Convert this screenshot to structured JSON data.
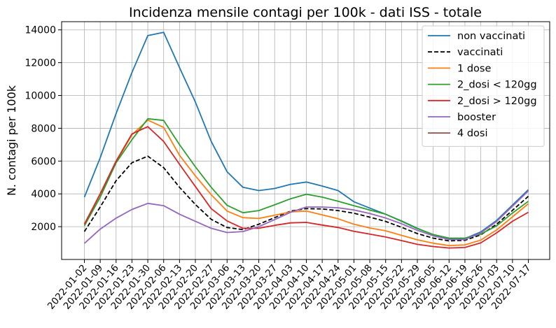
{
  "chart_data": {
    "type": "line",
    "title": "Incidenza mensile contagi per 100k - dati ISS - totale",
    "xlabel": "",
    "ylabel": "N. contagi per 100k",
    "ylim": [
      0,
      14500
    ],
    "yticks": [
      2000,
      4000,
      6000,
      8000,
      10000,
      12000,
      14000
    ],
    "grid": true,
    "legend_position": "top-right",
    "categories": [
      "2022-01-02",
      "2022-01-09",
      "2022-01-16",
      "2022-01-23",
      "2022-01-30",
      "2022-02-06",
      "2022-02-13",
      "2022-02-20",
      "2022-02-27",
      "2022-03-06",
      "2022-03-13",
      "2022-03-20",
      "2022-03-27",
      "2022-04-03",
      "2022-04-10",
      "2022-04-17",
      "2022-04-24",
      "2022-05-01",
      "2022-05-08",
      "2022-05-15",
      "2022-05-22",
      "2022-05-29",
      "2022-06-05",
      "2022-06-12",
      "2022-06-19",
      "2022-06-26",
      "2022-07-03",
      "2022-07-10",
      "2022-07-17"
    ],
    "series": [
      {
        "name": "non vaccinati",
        "color": "#1f77b4",
        "dash": "solid",
        "values": [
          3800,
          6200,
          8900,
          11400,
          13650,
          13850,
          11700,
          9600,
          7200,
          5350,
          4400,
          4200,
          4330,
          4580,
          4720,
          4480,
          4200,
          3520,
          3130,
          2760,
          2350,
          1900,
          1520,
          1270,
          1270,
          1680,
          2380,
          3320,
          4250
        ]
      },
      {
        "name": "vaccinati",
        "color": "#000000",
        "dash": "dashed",
        "values": [
          1700,
          3200,
          4800,
          5900,
          6300,
          5600,
          4400,
          3350,
          2450,
          1950,
          1820,
          2150,
          2550,
          2950,
          3100,
          3080,
          2980,
          2820,
          2580,
          2320,
          1960,
          1580,
          1300,
          1130,
          1170,
          1500,
          2150,
          3000,
          3850
        ]
      },
      {
        "name": "1 dose",
        "color": "#ff7f0e",
        "dash": "solid",
        "values": [
          2150,
          4000,
          5950,
          7600,
          8500,
          8050,
          6350,
          5100,
          3950,
          2950,
          2550,
          2500,
          2700,
          2900,
          2950,
          2720,
          2480,
          2150,
          1920,
          1750,
          1470,
          1200,
          990,
          850,
          890,
          1180,
          1800,
          2600,
          3400
        ]
      },
      {
        "name": "2_dosi < 120gg",
        "color": "#2ca02c",
        "dash": "solid",
        "values": [
          2050,
          3800,
          5900,
          7300,
          8580,
          8480,
          7000,
          5650,
          4400,
          3300,
          2850,
          2980,
          3330,
          3700,
          3980,
          3800,
          3550,
          3280,
          3010,
          2760,
          2330,
          1880,
          1520,
          1300,
          1300,
          1550,
          2050,
          2830,
          3550
        ]
      },
      {
        "name": "2_dosi > 120gg",
        "color": "#d62728",
        "dash": "solid",
        "values": [
          2150,
          4000,
          6000,
          7650,
          8100,
          7200,
          5800,
          4450,
          3100,
          2350,
          1900,
          1900,
          2080,
          2230,
          2260,
          2100,
          1950,
          1720,
          1550,
          1370,
          1150,
          920,
          790,
          700,
          730,
          1010,
          1620,
          2330,
          2880
        ]
      },
      {
        "name": "booster",
        "color": "#9467bd",
        "dash": "solid",
        "values": [
          980,
          1850,
          2520,
          3050,
          3420,
          3280,
          2760,
          2330,
          1900,
          1640,
          1700,
          2000,
          2430,
          2880,
          3200,
          3200,
          3150,
          3020,
          2800,
          2530,
          2180,
          1780,
          1440,
          1220,
          1210,
          1620,
          2320,
          3250,
          4180
        ]
      },
      {
        "name": "4 dosi",
        "color": "#8c564b",
        "dash": "solid",
        "values": [
          null,
          null,
          null,
          null,
          null,
          null,
          null,
          null,
          null,
          null,
          null,
          null,
          null,
          null,
          null,
          null,
          null,
          null,
          null,
          null,
          null,
          null,
          null,
          null,
          null,
          null,
          null,
          null,
          null
        ]
      }
    ]
  }
}
